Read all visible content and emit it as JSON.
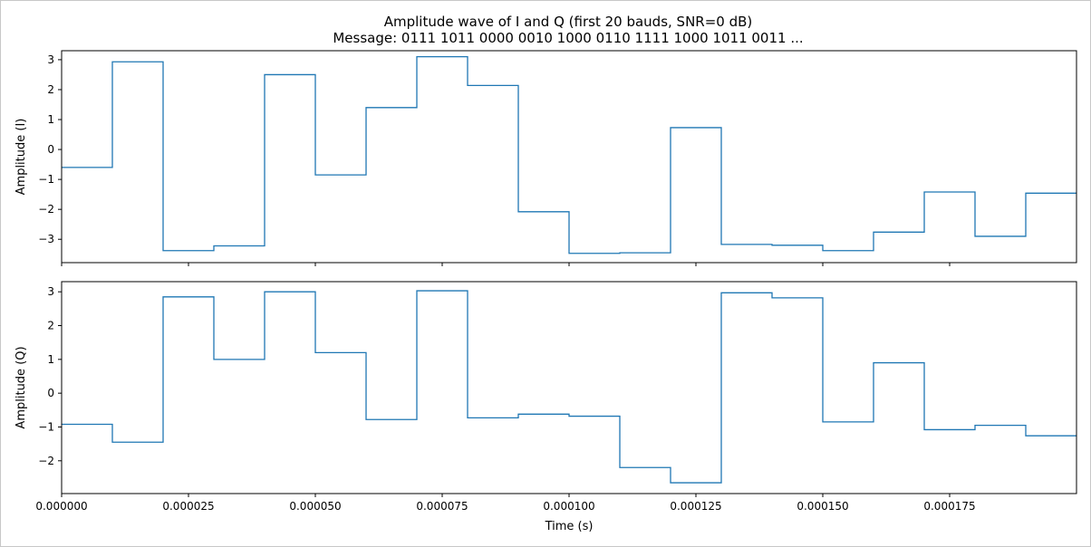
{
  "chart_data": {
    "type": "line",
    "title": "Amplitude wave of I and Q   (first 20 bauds, SNR=0 dB)",
    "subtitle": "Message: 0111 1011 0000 0010 1000 0110 1111 1000 1011 0011 ...",
    "xlabel": "Time (s)",
    "xlim": [
      0,
      0.0002
    ],
    "x_ticks": [
      0,
      2.5e-05,
      5e-05,
      7.5e-05,
      0.0001,
      0.000125,
      0.00015,
      0.000175
    ],
    "x_tick_labels": [
      "0.000000",
      "0.000025",
      "0.000050",
      "0.000075",
      "0.000100",
      "0.000125",
      "0.000150",
      "0.000175"
    ],
    "baud_period": 1e-05,
    "line_color": "#1f77b4",
    "grid": false,
    "subplots": [
      {
        "ylabel": "Amplitude (I)",
        "ylim": [
          -3.78,
          3.3
        ],
        "y_ticks": [
          -3,
          -2,
          -1,
          0,
          1,
          2,
          3
        ],
        "y_tick_labels": [
          "−3",
          "−2",
          "−1",
          "0",
          "1",
          "2",
          "3"
        ],
        "values": [
          -0.6,
          2.93,
          -3.38,
          -3.22,
          2.5,
          -0.85,
          1.4,
          3.1,
          2.14,
          -2.08,
          -3.47,
          -3.45,
          0.73,
          -3.17,
          -3.2,
          -3.38,
          -2.76,
          -1.42,
          -2.9,
          -1.46
        ]
      },
      {
        "ylabel": "Amplitude (Q)",
        "ylim": [
          -2.97,
          3.3
        ],
        "y_ticks": [
          -2,
          -1,
          0,
          1,
          2,
          3
        ],
        "y_tick_labels": [
          "−2",
          "−1",
          "0",
          "1",
          "2",
          "3"
        ],
        "values": [
          -0.92,
          -1.45,
          2.85,
          1.0,
          3.0,
          1.2,
          -0.78,
          3.03,
          -0.73,
          -0.62,
          -0.68,
          -2.2,
          -2.65,
          2.97,
          2.82,
          -0.85,
          0.9,
          -1.08,
          -0.95,
          -1.26
        ]
      }
    ]
  }
}
